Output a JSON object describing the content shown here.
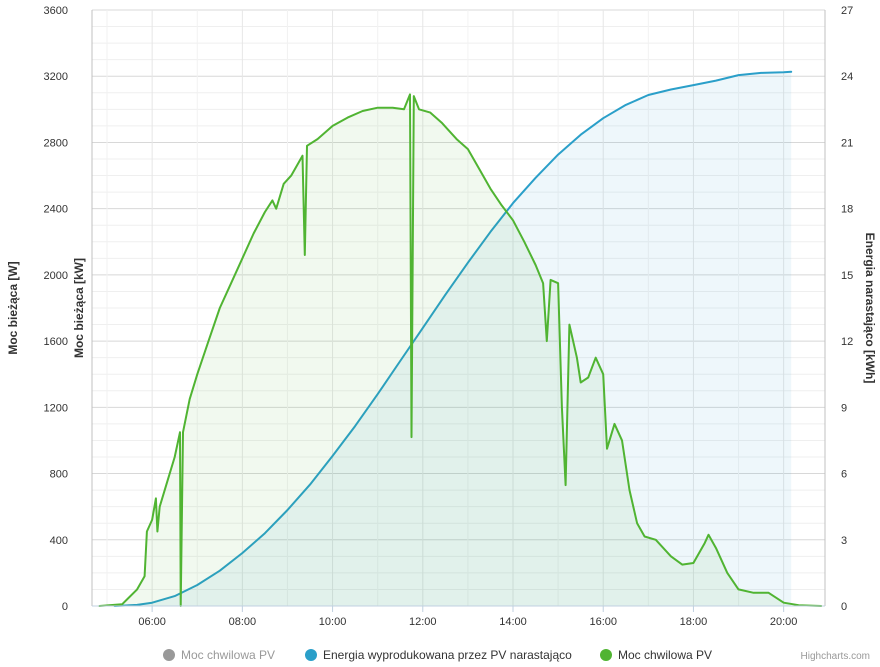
{
  "chart_data": {
    "type": "area",
    "x_unit": "time",
    "x_ticks": [
      "06:00",
      "08:00",
      "10:00",
      "12:00",
      "14:00",
      "16:00",
      "18:00",
      "20:00"
    ],
    "xlim": [
      "04:40",
      "20:55"
    ],
    "y_axes": [
      {
        "title": "Moc bieżąca [W]",
        "side": "left",
        "range": [
          0,
          3600
        ],
        "ticks": [
          0,
          400,
          800,
          1200,
          1600,
          2000,
          2400,
          2800,
          3200,
          3600
        ]
      },
      {
        "title": "Moc bieżąca [kW]",
        "side": "left",
        "range": [
          0,
          3.6
        ],
        "ticks": []
      },
      {
        "title": "Energia narastająco [kWh]",
        "side": "right",
        "range": [
          0,
          27
        ],
        "ticks": [
          0,
          3,
          6,
          9,
          12,
          15,
          18,
          21,
          24,
          27
        ]
      }
    ],
    "grid": true,
    "legend_position": "bottom-center",
    "series": [
      {
        "name": "Moc chwilowa PV",
        "axis": 1,
        "color": "#808080",
        "visible": false,
        "data": []
      },
      {
        "name": "Energia wyprodukowana przez PV narastająco",
        "axis": 2,
        "color": "#2a9fc9",
        "visible": true,
        "fill": true,
        "data": [
          [
            "05:10",
            0
          ],
          [
            "05:40",
            0.05
          ],
          [
            "06:00",
            0.15
          ],
          [
            "06:30",
            0.45
          ],
          [
            "07:00",
            0.95
          ],
          [
            "07:30",
            1.6
          ],
          [
            "08:00",
            2.4
          ],
          [
            "08:30",
            3.3
          ],
          [
            "09:00",
            4.35
          ],
          [
            "09:30",
            5.5
          ],
          [
            "10:00",
            6.8
          ],
          [
            "10:30",
            8.15
          ],
          [
            "11:00",
            9.6
          ],
          [
            "11:30",
            11.1
          ],
          [
            "12:00",
            12.6
          ],
          [
            "12:30",
            14.1
          ],
          [
            "13:00",
            15.55
          ],
          [
            "13:30",
            16.95
          ],
          [
            "14:00",
            18.25
          ],
          [
            "14:30",
            19.4
          ],
          [
            "15:00",
            20.45
          ],
          [
            "15:30",
            21.35
          ],
          [
            "16:00",
            22.1
          ],
          [
            "16:30",
            22.7
          ],
          [
            "17:00",
            23.15
          ],
          [
            "17:30",
            23.4
          ],
          [
            "18:00",
            23.6
          ],
          [
            "18:30",
            23.8
          ],
          [
            "19:00",
            24.05
          ],
          [
            "19:30",
            24.15
          ],
          [
            "20:00",
            24.18
          ],
          [
            "20:10",
            24.2
          ]
        ]
      },
      {
        "name": "Moc chwilowa PV",
        "axis": 0,
        "color": "#50b432",
        "visible": true,
        "fill": true,
        "data": [
          [
            "04:50",
            0
          ],
          [
            "05:20",
            10
          ],
          [
            "05:40",
            100
          ],
          [
            "05:50",
            180
          ],
          [
            "05:53",
            450
          ],
          [
            "06:00",
            520
          ],
          [
            "06:05",
            650
          ],
          [
            "06:07",
            450
          ],
          [
            "06:10",
            600
          ],
          [
            "06:20",
            750
          ],
          [
            "06:30",
            900
          ],
          [
            "06:37",
            1050
          ],
          [
            "06:38",
            0
          ],
          [
            "06:41",
            1050
          ],
          [
            "06:50",
            1250
          ],
          [
            "07:00",
            1400
          ],
          [
            "07:15",
            1600
          ],
          [
            "07:30",
            1800
          ],
          [
            "07:45",
            1950
          ],
          [
            "08:00",
            2100
          ],
          [
            "08:15",
            2250
          ],
          [
            "08:30",
            2380
          ],
          [
            "08:40",
            2450
          ],
          [
            "08:45",
            2400
          ],
          [
            "08:55",
            2550
          ],
          [
            "09:05",
            2600
          ],
          [
            "09:20",
            2720
          ],
          [
            "09:23",
            2120
          ],
          [
            "09:26",
            2780
          ],
          [
            "09:40",
            2820
          ],
          [
            "10:00",
            2900
          ],
          [
            "10:20",
            2950
          ],
          [
            "10:40",
            2990
          ],
          [
            "11:00",
            3010
          ],
          [
            "11:20",
            3010
          ],
          [
            "11:35",
            3000
          ],
          [
            "11:43",
            3090
          ],
          [
            "11:45",
            1020
          ],
          [
            "11:48",
            3080
          ],
          [
            "11:55",
            3000
          ],
          [
            "12:10",
            2980
          ],
          [
            "12:25",
            2920
          ],
          [
            "12:45",
            2820
          ],
          [
            "13:00",
            2760
          ],
          [
            "13:15",
            2640
          ],
          [
            "13:30",
            2520
          ],
          [
            "13:45",
            2420
          ],
          [
            "14:00",
            2330
          ],
          [
            "14:15",
            2200
          ],
          [
            "14:30",
            2060
          ],
          [
            "14:40",
            1950
          ],
          [
            "14:45",
            1600
          ],
          [
            "14:50",
            1970
          ],
          [
            "15:00",
            1950
          ],
          [
            "15:05",
            1200
          ],
          [
            "15:10",
            730
          ],
          [
            "15:15",
            1700
          ],
          [
            "15:25",
            1500
          ],
          [
            "15:30",
            1350
          ],
          [
            "15:40",
            1380
          ],
          [
            "15:50",
            1500
          ],
          [
            "16:00",
            1400
          ],
          [
            "16:05",
            950
          ],
          [
            "16:15",
            1100
          ],
          [
            "16:25",
            1000
          ],
          [
            "16:35",
            700
          ],
          [
            "16:45",
            500
          ],
          [
            "16:55",
            420
          ],
          [
            "17:10",
            400
          ],
          [
            "17:30",
            300
          ],
          [
            "17:45",
            250
          ],
          [
            "18:00",
            260
          ],
          [
            "18:15",
            380
          ],
          [
            "18:20",
            430
          ],
          [
            "18:30",
            350
          ],
          [
            "18:45",
            200
          ],
          [
            "19:00",
            100
          ],
          [
            "19:20",
            80
          ],
          [
            "19:40",
            80
          ],
          [
            "20:00",
            20
          ],
          [
            "20:20",
            5
          ],
          [
            "20:50",
            0
          ]
        ]
      }
    ]
  },
  "credits": "Highcharts.com"
}
